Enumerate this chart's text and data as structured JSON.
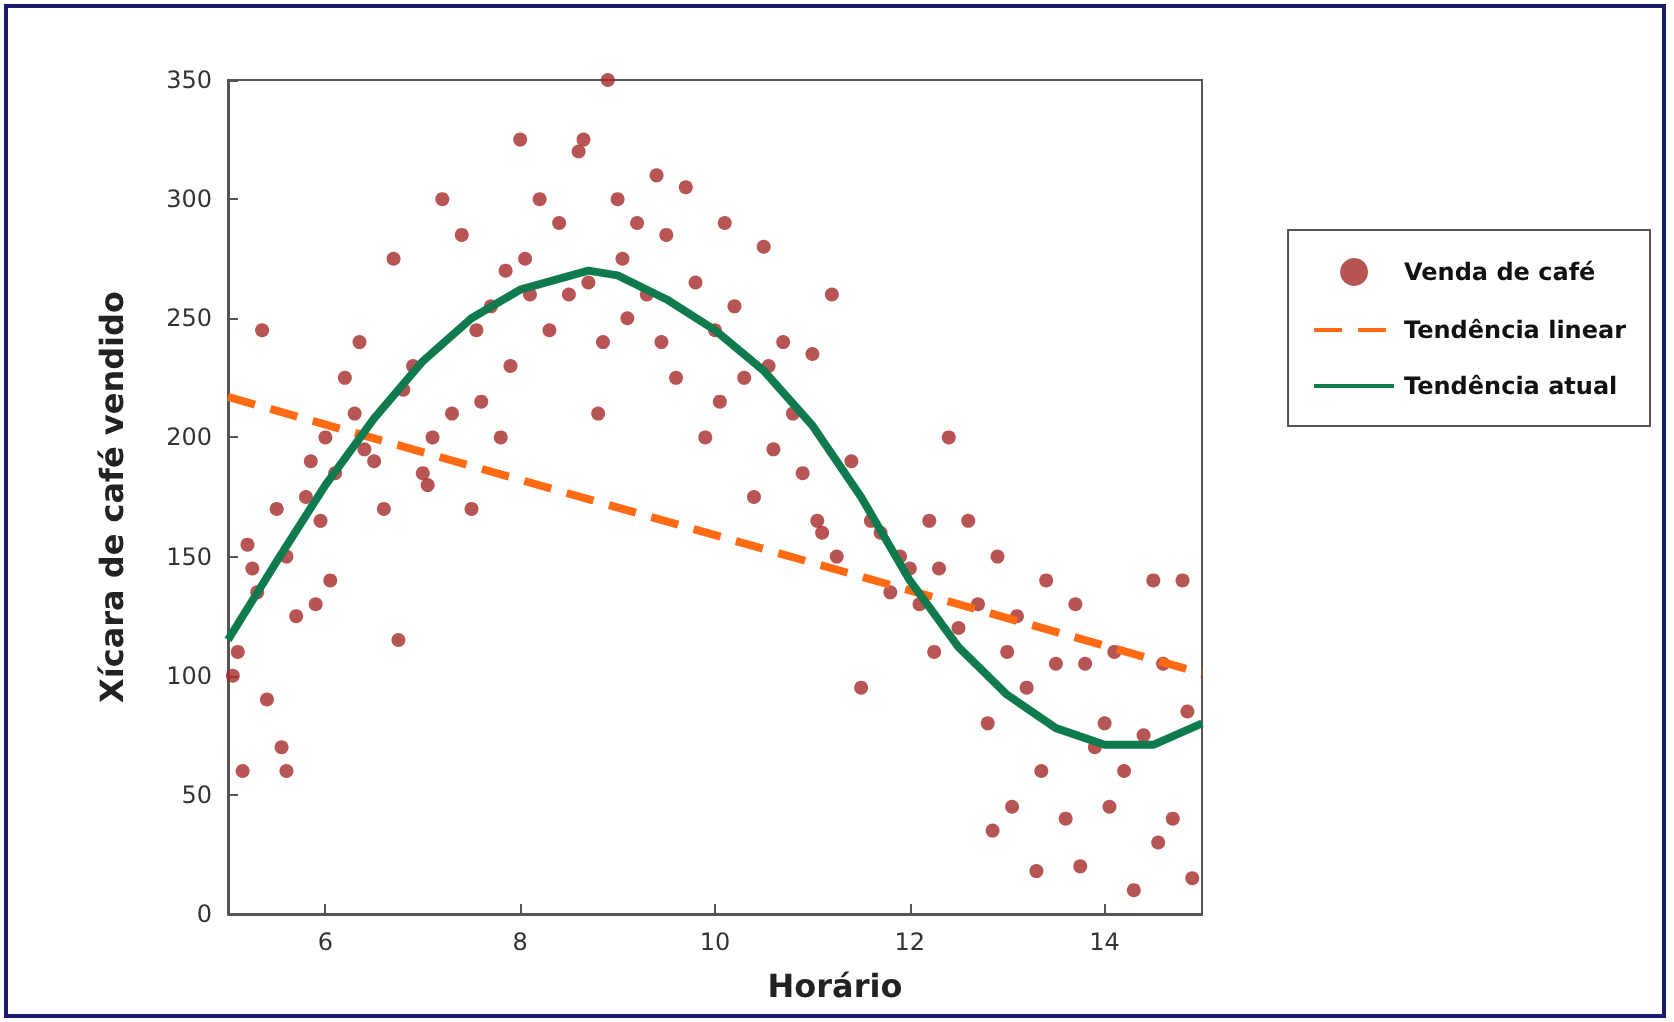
{
  "chart_data": {
    "type": "scatter",
    "xlabel": "Horário",
    "ylabel": "Xícara de café vendido",
    "xlim": [
      5,
      15
    ],
    "xticks": [
      6,
      8,
      10,
      12,
      14
    ],
    "ylim": [
      0,
      350
    ],
    "yticks": [
      0,
      50,
      100,
      150,
      200,
      250,
      300,
      350
    ],
    "grid": false,
    "legend": "right",
    "marker": "circle",
    "series": [
      {
        "name": "Venda de café",
        "color": "#a52a2a",
        "x": [
          5.05,
          5.1,
          5.15,
          5.2,
          5.25,
          5.3,
          5.35,
          5.4,
          5.5,
          5.55,
          5.6,
          5.6,
          5.7,
          5.8,
          5.85,
          5.9,
          5.95,
          6.0,
          6.05,
          6.1,
          6.2,
          6.3,
          6.35,
          6.4,
          6.5,
          6.6,
          6.7,
          6.75,
          6.8,
          6.9,
          7.0,
          7.05,
          7.1,
          7.2,
          7.3,
          7.4,
          7.5,
          7.55,
          7.6,
          7.7,
          7.8,
          7.85,
          7.9,
          8.0,
          8.05,
          8.1,
          8.2,
          8.3,
          8.4,
          8.5,
          8.6,
          8.65,
          8.7,
          8.8,
          8.85,
          8.9,
          9.0,
          9.05,
          9.1,
          9.2,
          9.3,
          9.4,
          9.45,
          9.5,
          9.6,
          9.7,
          9.8,
          9.9,
          10.0,
          10.05,
          10.1,
          10.2,
          10.3,
          10.4,
          10.5,
          10.55,
          10.6,
          10.7,
          10.8,
          10.9,
          11.0,
          11.05,
          11.1,
          11.2,
          11.25,
          11.4,
          11.5,
          11.6,
          11.7,
          11.8,
          11.9,
          12.0,
          12.1,
          12.2,
          12.25,
          12.3,
          12.4,
          12.5,
          12.6,
          12.7,
          12.8,
          12.85,
          12.9,
          13.0,
          13.05,
          13.1,
          13.2,
          13.3,
          13.35,
          13.4,
          13.5,
          13.6,
          13.7,
          13.75,
          13.8,
          13.9,
          14.0,
          14.05,
          14.1,
          14.2,
          14.3,
          14.4,
          14.5,
          14.55,
          14.6,
          14.7,
          14.8,
          14.85,
          14.9
        ],
        "values": [
          100,
          110,
          60,
          155,
          145,
          135,
          245,
          90,
          170,
          70,
          60,
          150,
          125,
          175,
          190,
          130,
          165,
          200,
          140,
          185,
          225,
          210,
          240,
          195,
          190,
          170,
          275,
          115,
          220,
          230,
          185,
          180,
          200,
          300,
          210,
          285,
          170,
          245,
          215,
          255,
          200,
          270,
          230,
          325,
          275,
          260,
          300,
          245,
          290,
          260,
          320,
          325,
          265,
          210,
          240,
          350,
          300,
          275,
          250,
          290,
          260,
          310,
          240,
          285,
          225,
          305,
          265,
          200,
          245,
          215,
          290,
          255,
          225,
          175,
          280,
          230,
          195,
          240,
          210,
          185,
          235,
          165,
          160,
          260,
          150,
          190,
          95,
          165,
          160,
          135,
          150,
          145,
          130,
          165,
          110,
          145,
          200,
          120,
          165,
          130,
          80,
          35,
          150,
          110,
          45,
          125,
          95,
          18,
          60,
          140,
          105,
          40,
          130,
          20,
          105,
          70,
          80,
          45,
          110,
          60,
          10,
          75,
          140,
          30,
          105,
          40,
          140,
          85,
          15
        ]
      },
      {
        "name": "Tendência linear",
        "type": "line",
        "color": "#ff6a13",
        "line_style": "dashed",
        "marker": "none",
        "x": [
          5,
          15
        ],
        "values": [
          217,
          101
        ]
      },
      {
        "name": "Tendência atual",
        "type": "line",
        "color": "#107a4f",
        "line_style": "solid",
        "marker": "none",
        "x": [
          5,
          5.5,
          6,
          6.5,
          7,
          7.5,
          8,
          8.7,
          9,
          9.5,
          10,
          10.5,
          11,
          11.5,
          12,
          12.5,
          13,
          13.5,
          14,
          14.5,
          15
        ],
        "values": [
          115,
          148,
          180,
          208,
          232,
          250,
          262,
          270,
          268,
          258,
          245,
          228,
          205,
          175,
          140,
          112,
          92,
          78,
          71,
          71,
          80
        ]
      }
    ]
  }
}
